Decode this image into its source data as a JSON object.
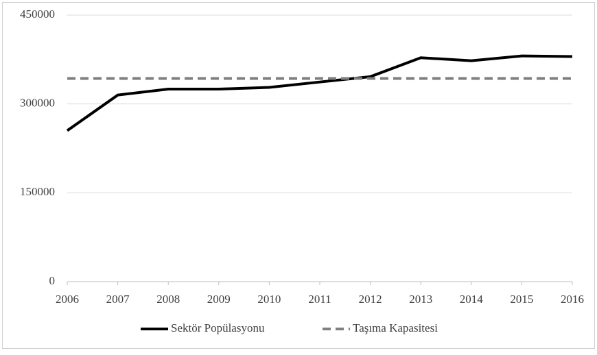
{
  "chart_data": {
    "type": "line",
    "x": [
      2006,
      2007,
      2008,
      2009,
      2010,
      2011,
      2012,
      2013,
      2014,
      2015,
      2016
    ],
    "xlim": [
      2006,
      2016
    ],
    "xticks": [
      2006,
      2007,
      2008,
      2009,
      2010,
      2011,
      2012,
      2013,
      2014,
      2015,
      2016
    ],
    "ylim": [
      0,
      450000
    ],
    "yticks": [
      0,
      150000,
      300000,
      450000
    ],
    "grid": true,
    "legend": "bottom",
    "series": [
      {
        "name": "Sektör Popülasyonu",
        "color": "#000000",
        "line_style": "solid",
        "values": [
          255000,
          315000,
          325000,
          325000,
          328000,
          337000,
          346000,
          378000,
          373000,
          381000,
          380000
        ]
      },
      {
        "name": "Taşıma Kapasitesi",
        "color": "#7f7f7f",
        "line_style": "dashed",
        "values": [
          343000,
          343000,
          343000,
          343000,
          343000,
          343000,
          343000,
          343000,
          343000,
          343000,
          343000
        ]
      }
    ]
  }
}
